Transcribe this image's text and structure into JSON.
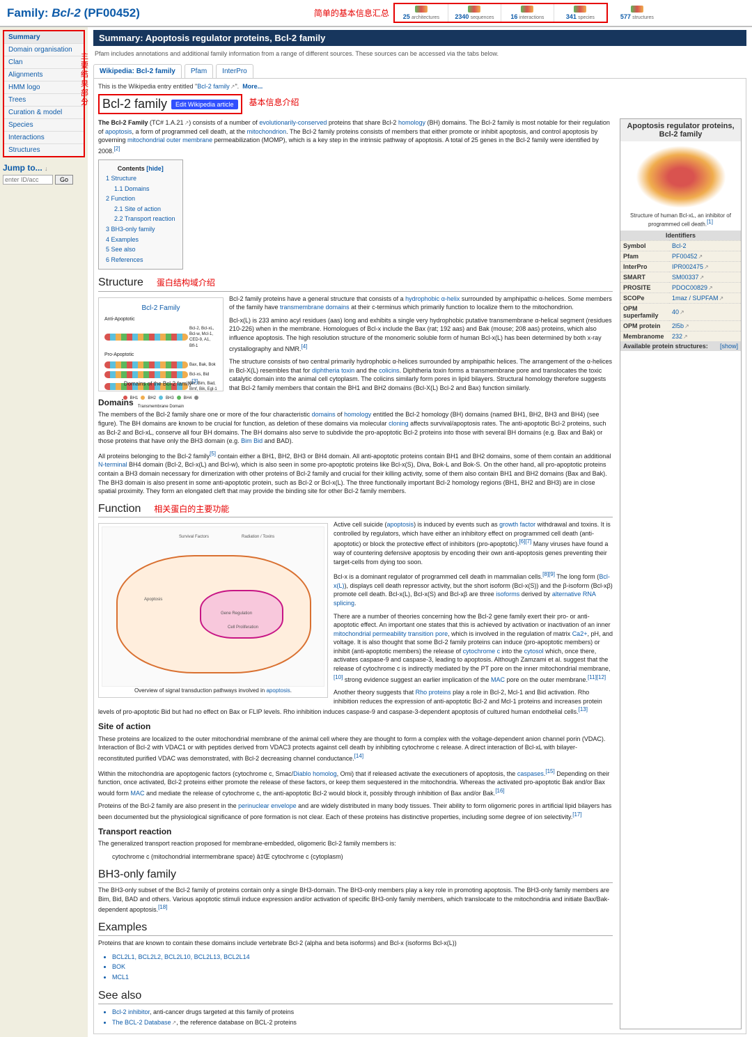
{
  "header": {
    "title_prefix": "Family: ",
    "title_italic": "Bcl-2",
    "title_suffix": " (PF00452)",
    "anno_top": "简单的基本信息汇总"
  },
  "stats": [
    {
      "num": "25",
      "label": "architectures"
    },
    {
      "num": "2340",
      "label": "sequences"
    },
    {
      "num": "16",
      "label": "interactions"
    },
    {
      "num": "341",
      "label": "species"
    }
  ],
  "stat_outside": {
    "num": "577",
    "label": "structures"
  },
  "nav": [
    "Summary",
    "Domain organisation",
    "Clan",
    "Alignments",
    "HMM logo",
    "Trees",
    "Curation & model",
    "Species",
    "Interactions",
    "Structures"
  ],
  "anno_side1": "主要结果",
  "anno_side2": "部分",
  "jump": {
    "title": "Jump to...",
    "icon": "↓",
    "placeholder": "enter ID/acc",
    "go": "Go"
  },
  "summary_bar": "Summary: Apoptosis regulator proteins, Bcl-2 family",
  "intro": "Pfam includes annotations and additional family information from a range of different sources. These sources can be accessed via the tabs below.",
  "tabs": [
    "Wikipedia: Bcl-2 family",
    "Pfam",
    "InterPro"
  ],
  "wiki_line_pre": "This is the Wikipedia entry entitled \"",
  "wiki_line_link": "Bcl-2 family",
  "wiki_line_more": "More...",
  "wiki_h2": "Bcl-2 family",
  "edit_btn": "Edit Wikipedia article",
  "anno_basic": "基本信息介绍",
  "lead": {
    "t1": "The Bcl-2 Family",
    "tc": " (TC# 1.A.21",
    "t2": ") consists of a number of ",
    "evo": "evolutionarily-conserved",
    "t3": " proteins that share Bcl-2 ",
    "hom": "homology",
    "t4": " (BH) domains. The Bcl-2 family is most notable for their regulation of ",
    "apo": "apoptosis",
    "t5": ", a form of programmed cell death, at the ",
    "mito": "mitochondrion",
    "t6": ". The Bcl-2 family proteins consists of members that either promote or inhibit apoptosis, and control apoptosis by governing ",
    "mom": "mitochondrial outer membrane",
    "t7": " permeabilization (MOMP), which is a key step in the intrinsic pathway of apoptosis. A total of 25 genes in the Bcl-2 family were identified by 2008."
  },
  "toc_title": "Contents",
  "toc_hide": "[hide]",
  "toc": [
    {
      "n": "1",
      "t": "Structure",
      "sub": [
        {
          "n": "1.1",
          "t": "Domains"
        }
      ]
    },
    {
      "n": "2",
      "t": "Function",
      "sub": [
        {
          "n": "2.1",
          "t": "Site of action"
        },
        {
          "n": "2.2",
          "t": "Transport reaction"
        }
      ]
    },
    {
      "n": "3",
      "t": "BH3-only family"
    },
    {
      "n": "4",
      "t": "Examples"
    },
    {
      "n": "5",
      "t": "See also"
    },
    {
      "n": "6",
      "t": "References"
    }
  ],
  "infobox": {
    "title": "Apoptosis regulator proteins, Bcl-2 family",
    "caption_pre": "Structure of human Bcl-xL, an inhibitor of programmed cell death.",
    "hdr": "Identifiers",
    "rows": [
      {
        "k": "Symbol",
        "v": "Bcl-2"
      },
      {
        "k": "Pfam",
        "v": "PF00452",
        "ext": true
      },
      {
        "k": "InterPro",
        "v": "IPR002475",
        "ext": true
      },
      {
        "k": "SMART",
        "v": "SM00337",
        "ext": true
      },
      {
        "k": "PROSITE",
        "v": "PDOC00829",
        "ext": true
      },
      {
        "k": "SCOPe",
        "v": "1maz / SUPFAM",
        "ext": true
      },
      {
        "k": "OPM superfamily",
        "v": "40",
        "ext": true
      },
      {
        "k": "OPM protein",
        "v": "2l5b",
        "ext": true
      },
      {
        "k": "Membranome",
        "v": "232",
        "ext": true
      }
    ],
    "avail": "Available protein structures:",
    "show": "[show]"
  },
  "sec_structure": {
    "h": "Structure",
    "anno": "蛋白结构域介绍",
    "fig_title": "Bcl-2 Family",
    "fig_anti": "Anti-Apoptotic",
    "fig_pro": "Pro-Apoptotic",
    "fig_leg_a": "Bcl-2, Bcl-xL, Bcl-w, Mcl-1, CED-9, A1, Bfl-1",
    "fig_leg_b": "Bax, Bak, Bok",
    "fig_leg_c": "Bcl-xs, Bid",
    "fig_leg_d": "Bik, Bim, Bad, Bmf, Bik, Egl-1",
    "fig_cap": "Domains of the Bcl-2 family",
    "p1a": "Bcl-2 family proteins have a general structure that consists of a ",
    "p1b": "hydrophobic",
    "p1c": " α-helix",
    "p1d": " surrounded by amphipathic α-helices. Some members of the family have ",
    "p1e": "transmembrane domains",
    "p1f": " at their c-terminus which primarily function to localize them to the mitochondrion.",
    "p2": "Bcl-x(L) is 233 amino acyl residues (aas) long and exhibits a single very hydrophobic putative transmembrane α-helical segment (residues 210-226) when in the membrane. Homologues of Bcl-x include the Bax (rat; 192 aas) and Bak (mouse; 208 aas) proteins, which also influence apoptosis. The high resolution structure of the monomeric soluble form of human Bcl-x(L) has been determined by both x-ray crystallography and NMR.",
    "p3a": "The structure consists of two central primarily hydrophobic α-helices surrounded by amphipathic helices. The arrangement of the α-helices in Bcl-X(L) resembles that for ",
    "p3b": "diphtheria toxin",
    "p3c": " and the ",
    "p3d": "colicins",
    "p3e": ". Diphtheria toxin forms a transmembrane pore and translocates the toxic catalytic domain into the animal cell cytoplasm. The colicins similarly form pores in lipid bilayers. Structural homology therefore suggests that Bcl-2 family members that contain the BH1 and BH2 domains (Bcl-X(L) Bcl-2 and Bax) function similarly.",
    "h_dom": "Domains",
    "p4a": "The members of the Bcl-2 family share one or more of the four characteristic ",
    "p4b": "domains",
    "p4c": " of ",
    "p4d": "homology",
    "p4e": " entitled the Bcl-2 homology (BH) domains (named BH1, BH2, BH3 and BH4) (see figure). The BH domains are known to be crucial for function, as deletion of these domains via molecular ",
    "p4f": "cloning",
    "p4g": " affects survival/apoptosis rates. The anti-apoptotic Bcl-2 proteins, such as Bcl-2 and Bcl-xL, conserve all four BH domains. The BH domains also serve to subdivide the pro-apoptotic Bcl-2 proteins into those with several BH domains (e.g. Bax and Bak) or those proteins that have only the BH3 domain (e.g. ",
    "p4h": "Bim",
    "p4i": " Bid",
    "p4j": " and BAD).",
    "p5a": "All proteins belonging to the Bcl-2 family",
    "p5b": " contain either a BH1, BH2, BH3 or BH4 domain. All anti-apoptotic proteins contain BH1 and BH2 domains, some of them contain an additional ",
    "p5c": "N-terminal",
    "p5d": " BH4 domain (Bcl-2, Bcl-x(L) and Bcl-w), which is also seen in some pro-apoptotic proteins like Bcl-x(S), Diva, Bok-L and Bok-S. On the other hand, all pro-apoptotic proteins contain a BH3 domain necessary for dimerization with other proteins of Bcl-2 family and crucial for their killing activity, some of them also contain BH1 and BH2 domains (Bax and Bak). The BH3 domain is also present in some anti-apoptotic protein, such as Bcl-2 or Bcl-x(L). The three functionally important Bcl-2 homology regions (BH1, BH2 and BH3) are in close spatial proximity. They form an elongated cleft that may provide the binding site for other Bcl-2 family members."
  },
  "sec_function": {
    "h": "Function",
    "anno": "相关蛋白的主要功能",
    "fig_cap_pre": "Overview of signal transduction pathways involved in ",
    "fig_cap_link": "apoptosis",
    "p1a": "Active cell suicide (",
    "p1b": "apoptosis",
    "p1c": ") is induced by events such as ",
    "p1d": "growth factor",
    "p1e": " withdrawal and toxins. It is controlled by regulators, which have either an inhibitory effect on programmed cell death (anti-apoptotic) or block the protective effect of inhibitors (pro-apoptotic).",
    "p1f": " Many viruses have found a way of countering defensive apoptosis by encoding their own anti-apoptosis genes preventing their target-cells from dying too soon.",
    "p2a": "Bcl-x is a dominant regulator of programmed cell death in mammalian cells.",
    "p2b": " The long form (",
    "p2c": "Bcl-x(L)",
    "p2d": "), displays cell death repressor activity, but the short isoform (Bcl-x(S)) and the β-isoform (Bcl-xβ) promote cell death. Bcl-x(L), Bcl-x(S) and Bcl-xβ are three ",
    "p2e": "isoforms",
    "p2f": " derived by ",
    "p2g": "alternative RNA splicing",
    "p3a": "There are a number of theories concerning how the Bcl-2 gene family exert their pro- or anti-apoptotic effect. An important one states that this is achieved by activation or inactivation of an inner ",
    "p3b": "mitochondrial permeability transition pore",
    "p3c": ", which is involved in the regulation of matrix ",
    "p3d": "Ca2+",
    "p3e": ", pH, and voltage. It is also thought that some Bcl-2 family proteins can induce (pro-apoptotic members) or inhibit (anti-apoptotic members) the release of ",
    "p3f": "cytochrome c",
    "p3g": " into the ",
    "p3h": "cytosol",
    "p3i": " which, once there, activates caspase-9 and caspase-3, leading to apoptosis. Although Zamzami et al. suggest that the release of cytochrome c is indirectly mediated by the PT pore on the inner mitochondrial membrane,",
    "p3j": " strong evidence suggest an earlier implication of the ",
    "p3k": "MAC",
    "p3l": " pore on the outer membrane.",
    "p4a": "Another theory suggests that ",
    "p4b": "Rho proteins",
    "p4c": " play a role in Bcl-2, Mcl-1 and Bid activation. Rho inhibition reduces the expression of anti-apoptotic Bcl-2 and Mcl-1 proteins and increases protein levels of pro-apoptotic Bid but had no effect on Bax or FLIP levels. Rho inhibition induces caspase-9 and caspase-3-dependent apoptosis of cultured human endothelial cells.",
    "h_site": "Site of action",
    "p5": "These proteins are localized to the outer mitochondrial membrane of the animal cell where they are thought to form a complex with the voltage-dependent anion channel porin (VDAC). Interaction of Bcl-2 with VDAC1 or with peptides derived from VDAC3 protects against cell death by inhibiting cytochrome c release. A direct interaction of Bcl-xL with bilayer-reconstituted purified VDAC was demonstrated, with Bcl-2 decreasing channel conductance.",
    "p6a": "Within the mitochondria are apoptogenic factors (cytochrome c, Smac/",
    "p6b": "Diablo homolog",
    "p6c": ", Omi) that if released activate the executioners of apoptosis, the ",
    "p6d": "caspases",
    "p6e1": " Depending on their function, once activated, Bcl-2 proteins either promote the release of these factors, or keep them sequestered in the mitochondria. Whereas the activated pro-apoptotic Bak and/or Bax would form ",
    "p6e2": "MAC",
    "p6e3": " and mediate the release of cytochrome c, the anti-apoptotic Bcl-2 would block it, possibly through inhibition of Bax and/or Bak.",
    "p7a": "Proteins of the Bcl-2 family are also present in the ",
    "p7b": "perinuclear envelope",
    "p7c": " and are widely distributed in many body tissues. Their ability to form oligomeric pores in artificial lipid bilayers has been documented but the physiological significance of pore formation is not clear. Each of these proteins has distinctive properties, including some degree of ion selectivity.",
    "h_tr": "Transport reaction",
    "p8": "The generalized transport reaction proposed for membrane-embedded, oligomeric Bcl-2 family members is:",
    "p9": "cytochrome c (mitochondrial intermembrane space) â‡Œ cytochrome c (cytoplasm)"
  },
  "sec_bh3": {
    "h": "BH3-only family",
    "p": "The BH3-only subset of the Bcl-2 family of proteins contain only a single BH3-domain. The BH3-only members play a key role in promoting apoptosis. The BH3-only family members are Bim, Bid, BAD and others. Various apoptotic stimuli induce expression and/or activation of specific BH3-only family members, which translocate to the mitochondria and initiate Bax/Bak-dependent apoptosis."
  },
  "sec_ex": {
    "h": "Examples",
    "p": "Proteins that are known to contain these domains include vertebrate Bcl-2 (alpha and beta isoforms) and Bcl-x (isoforms Bcl-x(L))",
    "items": [
      "BCL2L1, BCL2L2, BCL2L10, BCL2L13, BCL2L14",
      "BOK",
      "MCL1"
    ]
  },
  "sec_see": {
    "h": "See also",
    "i1a": "Bcl-2 inhibitor",
    "i1b": ", anti-cancer drugs targeted at this family of proteins",
    "i2a": "The BCL-2 Database",
    "i2b": ", the reference database on BCL-2 proteins"
  },
  "colors": {
    "red": "#e60000",
    "link": "#0d5ba9",
    "bar": "#17365d"
  }
}
